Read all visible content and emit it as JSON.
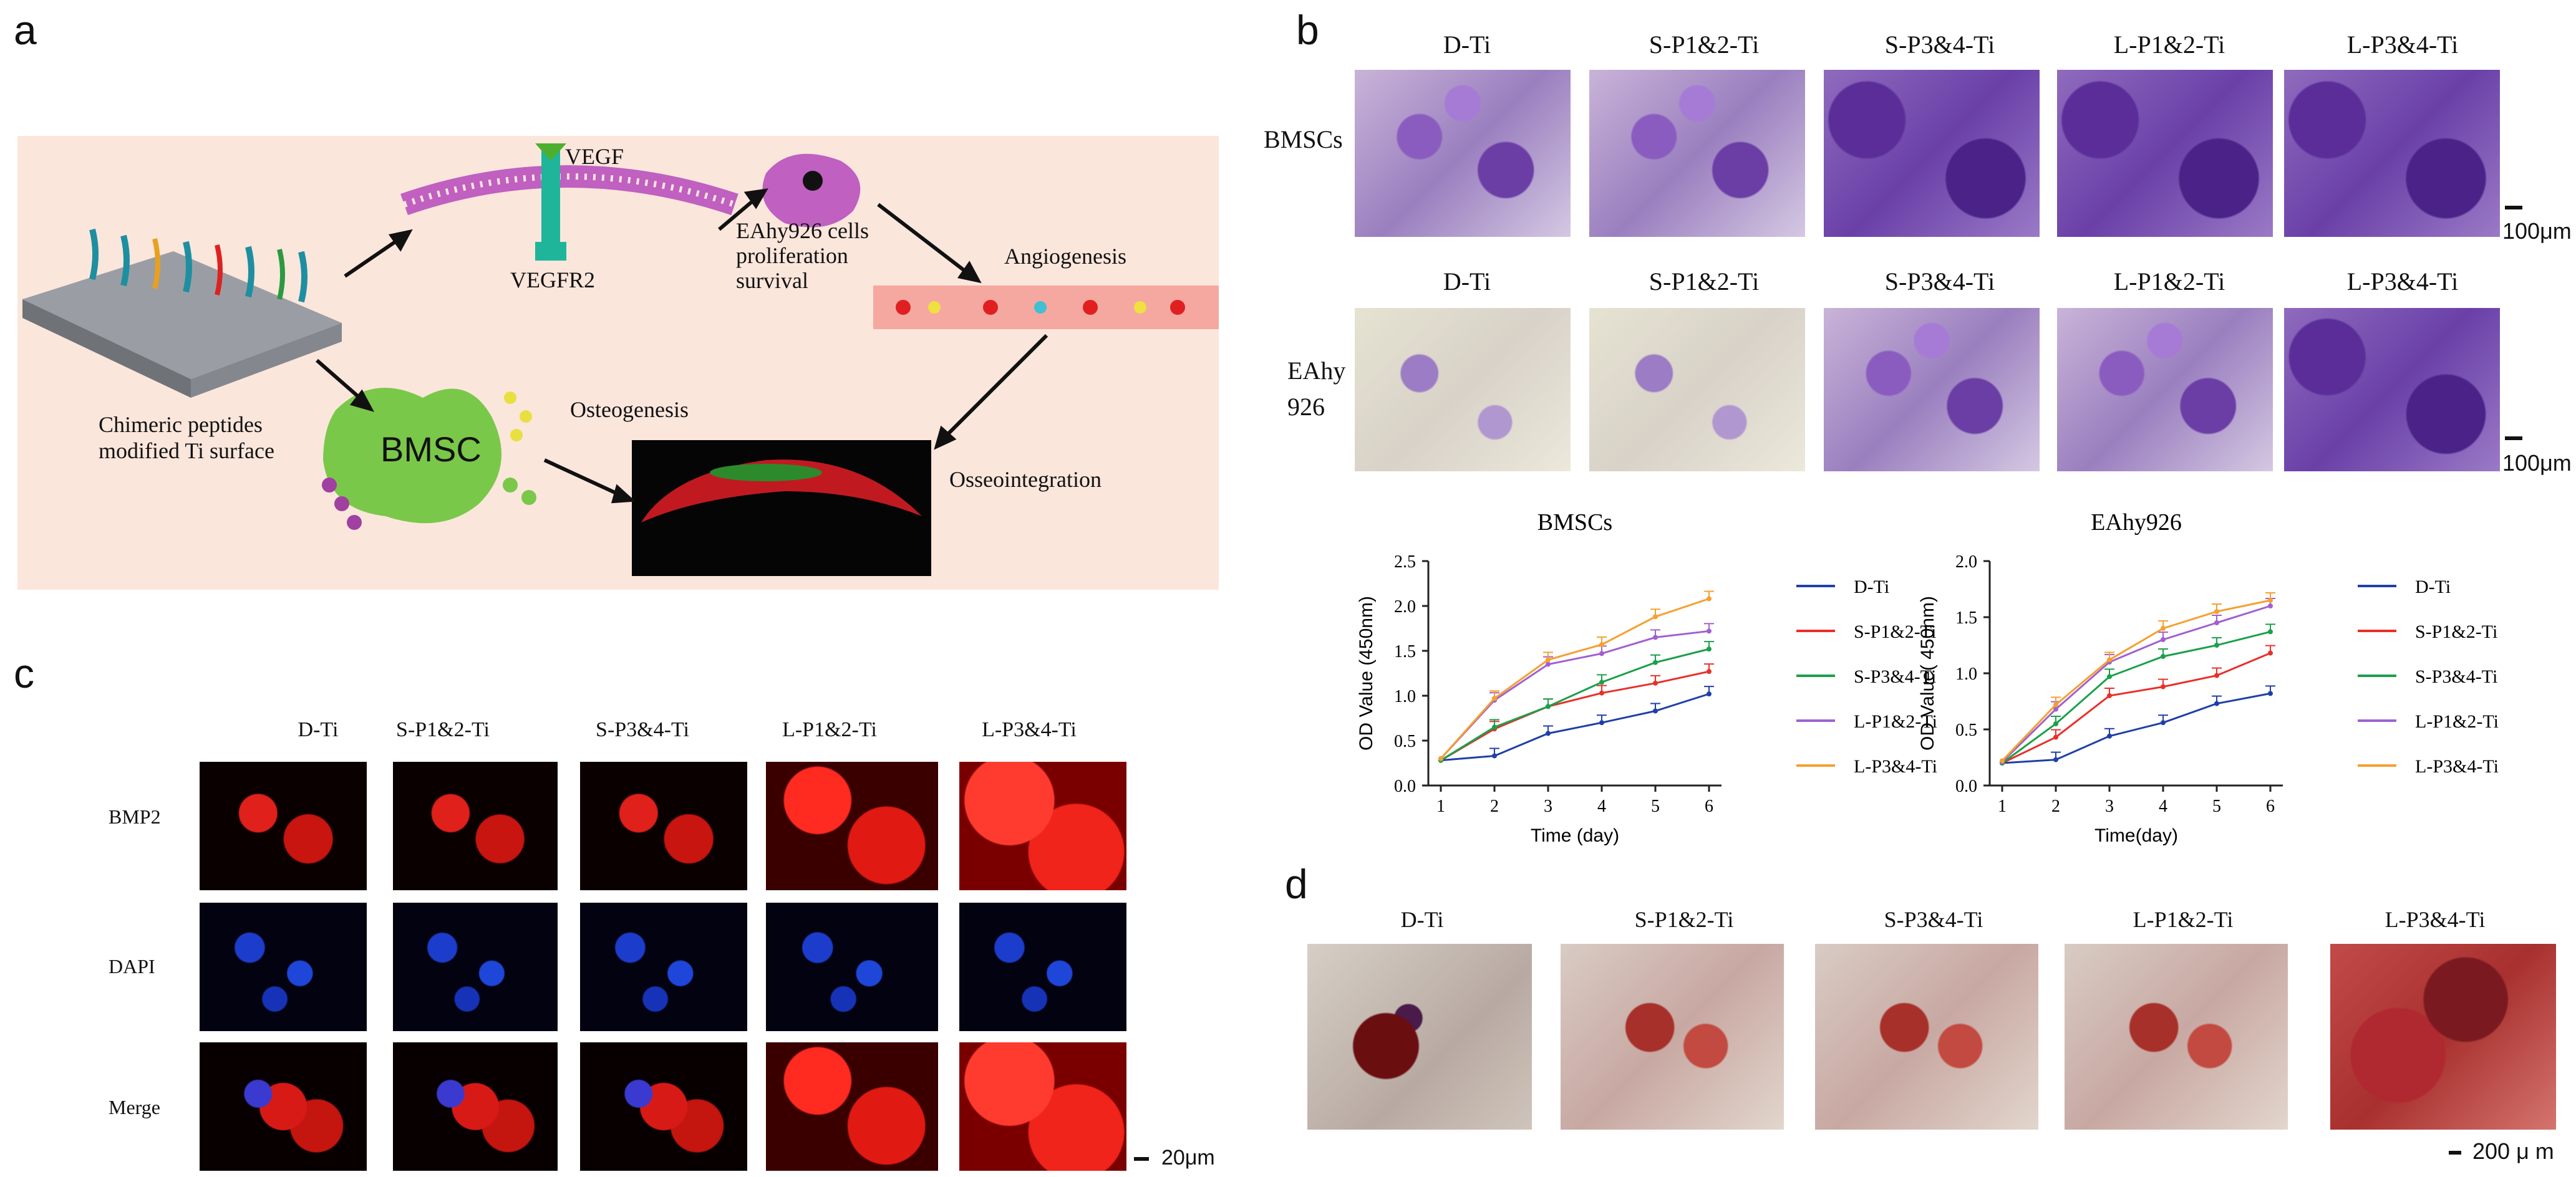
{
  "panel_labels": {
    "a": "a",
    "b": "b",
    "c": "c",
    "d": "d"
  },
  "panel_a": {
    "vegf": "VEGF",
    "vegfr2": "VEGFR2",
    "eahy_cells": "EAhy926 cells",
    "proliferation": "proliferation",
    "survival": "survival",
    "angiogenesis": "Angiogenesis",
    "chimeric": "Chimeric peptides",
    "modified": "modified Ti surface",
    "bmsc": "BMSC",
    "osteogenesis": "Osteogenesis",
    "osseointegration": "Osseointegration"
  },
  "panel_b": {
    "columns": [
      "D-Ti",
      "S-P1&2-Ti",
      "S-P3&4-Ti",
      "L-P1&2-Ti",
      "L-P3&4-Ti"
    ],
    "row1": "BMSCs",
    "row2_line1": "EAhy",
    "row2_line2": "926",
    "scale1": "100μm",
    "scale2": "100μm"
  },
  "panel_c": {
    "columns": [
      "D-Ti",
      "S-P1&2-Ti",
      "S-P3&4-Ti",
      "L-P1&2-Ti",
      "L-P3&4-Ti"
    ],
    "rows": [
      "BMP2",
      "DAPI",
      "Merge"
    ],
    "scale": "20μm"
  },
  "panel_d": {
    "columns": [
      "D-Ti",
      "S-P1&2-Ti",
      "S-P3&4-Ti",
      "L-P1&2-Ti",
      "L-P3&4-Ti"
    ],
    "scale": "200 μ m"
  },
  "colors": {
    "D-Ti": "#1f3fa8",
    "S-P1&2-Ti": "#e8302a",
    "S-P3&4-Ti": "#1aa04a",
    "L-P1&2-Ti": "#a060d0",
    "L-P3&4-Ti": "#f5a030"
  },
  "chart_data": [
    {
      "type": "line",
      "title": "BMSCs",
      "xlabel": "Time (day)",
      "ylabel": "OD Value (450nm)",
      "x": [
        1,
        2,
        3,
        4,
        5,
        6
      ],
      "xticks": [
        "1",
        "2",
        "3",
        "4",
        "5",
        "6"
      ],
      "yticks": [
        "0.0",
        "0.5",
        "1.0",
        "1.5",
        "2.0",
        "2.5"
      ],
      "ylim": [
        0,
        2.5
      ],
      "legend": "right",
      "series": [
        {
          "name": "D-Ti",
          "values": [
            0.28,
            0.33,
            0.58,
            0.7,
            0.83,
            1.02
          ]
        },
        {
          "name": "S-P1&2-Ti",
          "values": [
            0.28,
            0.63,
            0.88,
            1.03,
            1.14,
            1.27
          ]
        },
        {
          "name": "S-P3&4-Ti",
          "values": [
            0.28,
            0.65,
            0.88,
            1.15,
            1.37,
            1.52
          ]
        },
        {
          "name": "L-P1&2-Ti",
          "values": [
            0.3,
            0.95,
            1.35,
            1.47,
            1.65,
            1.72
          ]
        },
        {
          "name": "L-P3&4-Ti",
          "values": [
            0.3,
            0.97,
            1.4,
            1.57,
            1.88,
            2.08
          ]
        }
      ]
    },
    {
      "type": "line",
      "title": "EAhy926",
      "xlabel": "Time(day)",
      "ylabel": "OD Value( 450nm)",
      "x": [
        1,
        2,
        3,
        4,
        5,
        6
      ],
      "xticks": [
        "1",
        "2",
        "3",
        "4",
        "5",
        "6"
      ],
      "yticks": [
        "0.0",
        "0.5",
        "1.0",
        "1.5",
        "2.0"
      ],
      "ylim": [
        0,
        2.0
      ],
      "legend": "right",
      "series": [
        {
          "name": "D-Ti",
          "values": [
            0.2,
            0.23,
            0.44,
            0.56,
            0.73,
            0.82
          ]
        },
        {
          "name": "S-P1&2-Ti",
          "values": [
            0.2,
            0.43,
            0.8,
            0.88,
            0.98,
            1.18
          ]
        },
        {
          "name": "S-P3&4-Ti",
          "values": [
            0.2,
            0.55,
            0.97,
            1.15,
            1.25,
            1.37
          ]
        },
        {
          "name": "L-P1&2-Ti",
          "values": [
            0.21,
            0.68,
            1.1,
            1.3,
            1.45,
            1.6
          ]
        },
        {
          "name": "L-P3&4-Ti",
          "values": [
            0.22,
            0.72,
            1.12,
            1.4,
            1.55,
            1.65
          ]
        }
      ]
    }
  ]
}
